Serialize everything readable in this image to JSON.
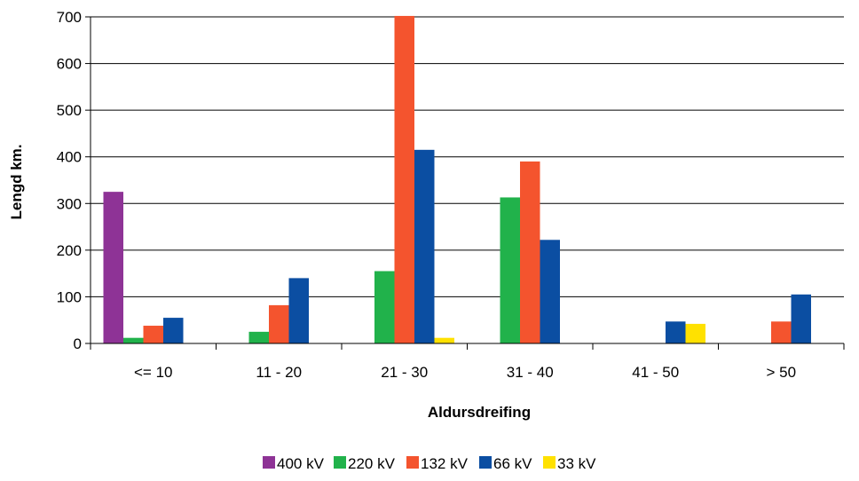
{
  "chart_data": {
    "type": "bar",
    "title": "",
    "xlabel": "Aldursdreifing",
    "ylabel": "Lengd km.",
    "ylim": [
      0,
      700
    ],
    "yticks": [
      0,
      100,
      200,
      300,
      400,
      500,
      600,
      700
    ],
    "categories": [
      "<= 10",
      "11 - 20",
      "21 - 30",
      "31 - 40",
      "41 - 50",
      "> 50"
    ],
    "grid": true,
    "legend_position": "bottom",
    "series": [
      {
        "name": "400 kV",
        "color": "#8E3396",
        "values": [
          325,
          0,
          0,
          0,
          0,
          0
        ]
      },
      {
        "name": "220 kV",
        "color": "#21B24B",
        "values": [
          12,
          25,
          155,
          313,
          0,
          0
        ]
      },
      {
        "name": "132 kV",
        "color": "#F4542E",
        "values": [
          38,
          82,
          702,
          390,
          0,
          47
        ]
      },
      {
        "name": "66 kV",
        "color": "#0B4EA2",
        "values": [
          55,
          140,
          415,
          222,
          47,
          105
        ]
      },
      {
        "name": "33 kV",
        "color": "#FFE100",
        "values": [
          0,
          0,
          12,
          0,
          42,
          0
        ]
      }
    ]
  }
}
